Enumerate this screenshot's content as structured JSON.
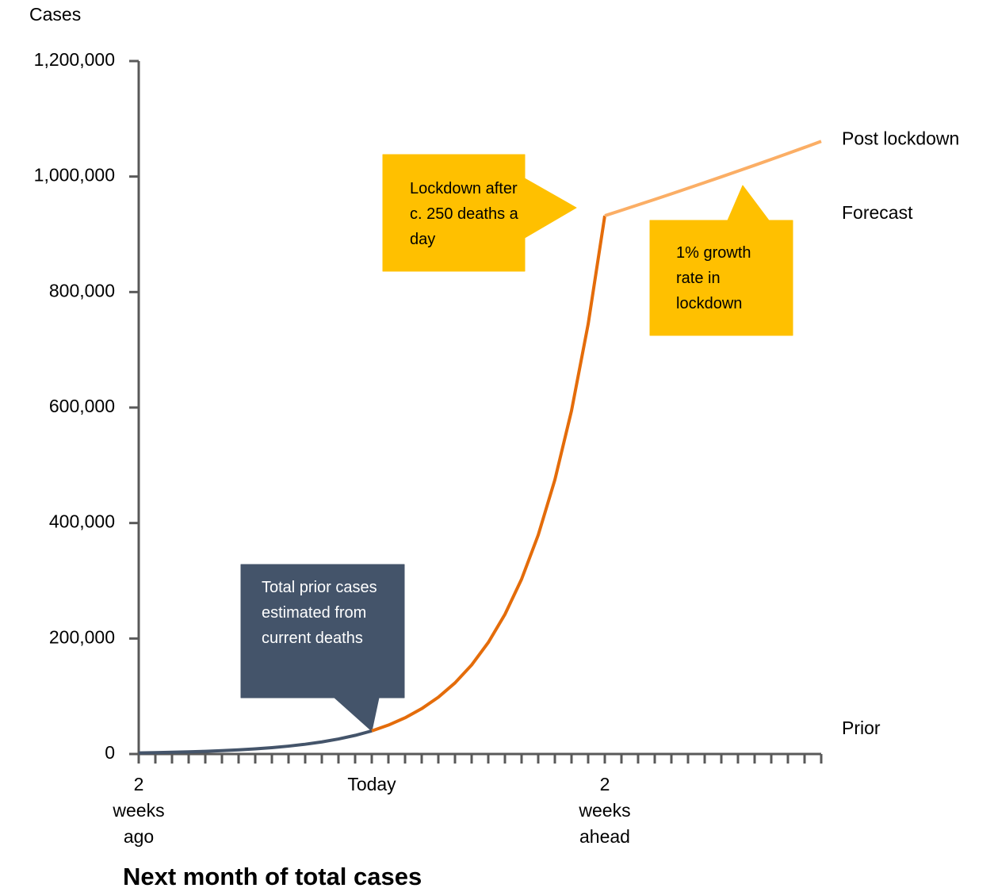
{
  "chart_data": {
    "type": "line",
    "title": "Next month of total cases",
    "y_label": "Cases",
    "xlim": [
      -14,
      27
    ],
    "ylim": [
      0,
      1200000
    ],
    "yticks": [
      0,
      {
        "value": 200000,
        "label": "200,000"
      },
      {
        "value": 400000,
        "label": "400,000"
      },
      {
        "value": 600000,
        "label": "600,000"
      },
      {
        "value": 800000,
        "label": "800,000"
      },
      {
        "value": 1000000,
        "label": "1,000,000"
      },
      {
        "value": 1200000,
        "label": "1,200,000"
      }
    ],
    "xticks": [
      {
        "value": -14,
        "label": "2 weeks ago"
      },
      {
        "value": 0,
        "label": "Today"
      },
      {
        "value": 14,
        "label": "2 weeks ahead"
      }
    ],
    "xminor_ticks": [
      -14,
      -13,
      -12,
      -11,
      -10,
      -9,
      -8,
      -7,
      -6,
      -5,
      -4,
      -3,
      -2,
      -1,
      0,
      1,
      2,
      3,
      4,
      5,
      6,
      7,
      8,
      9,
      10,
      11,
      12,
      13,
      14,
      15,
      16,
      17,
      18,
      19,
      20,
      21,
      22,
      23,
      24,
      25,
      26,
      27
    ],
    "series": [
      {
        "name": "Prior",
        "color": "#44546a",
        "x": [
          -14,
          -13,
          -12,
          -11,
          -10,
          -9,
          -8,
          -7,
          -6,
          -5,
          -4,
          -3,
          -2,
          -1,
          0
        ],
        "values": [
          1969,
          2441,
          3027,
          3753,
          4654,
          5771,
          7156,
          8874,
          11004,
          13644,
          16919,
          20980,
          26015,
          32258,
          40000
        ]
      },
      {
        "name": "Forecast",
        "color": "#e46c0a",
        "x": [
          0,
          1,
          2,
          3,
          4,
          5,
          6,
          7,
          8,
          9,
          10,
          11,
          12,
          13,
          14
        ],
        "values": [
          40000,
          50088,
          62720,
          78540,
          98348,
          123152,
          154212,
          193104,
          241804,
          302788,
          379152,
          474776,
          594520,
          744460,
          932200
        ]
      },
      {
        "name": "Post lockdown",
        "color": "#fbae65",
        "x": [
          14,
          15,
          16,
          17,
          18,
          19,
          20,
          21,
          22,
          23,
          24,
          25,
          26,
          27
        ],
        "values": [
          932200,
          941522,
          950937,
          960447,
          970051,
          979752,
          989549,
          999445,
          1009439,
          1019534,
          1029729,
          1040026,
          1050427,
          1060931
        ]
      }
    ],
    "annotations": [
      {
        "text": "Total prior cases estimated from current deaths"
      },
      {
        "text": "Lockdown after c. 250 deaths a day"
      },
      {
        "text": "1% growth rate in lockdown"
      }
    ]
  }
}
